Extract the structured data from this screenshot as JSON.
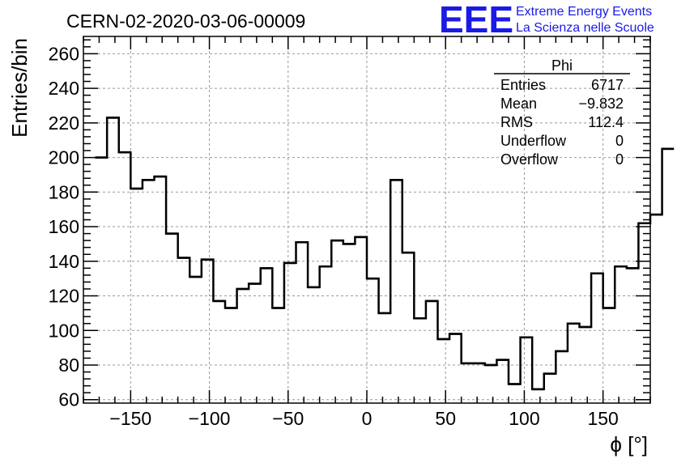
{
  "header": {
    "run_title": "CERN-02-2020-03-06-00009",
    "logo_text": "EEE",
    "logo_line1": "Extreme Energy Events",
    "logo_line2": "La Scienza nelle Scuole",
    "logo_color": "#1a1ae6"
  },
  "chart_data": {
    "type": "histogram",
    "xlabel": "ϕ [°]",
    "ylabel": "Entries/bin",
    "xlim": [
      -180,
      180
    ],
    "ylim": [
      58,
      270
    ],
    "xticks": [
      -150,
      -100,
      -50,
      0,
      50,
      100,
      150
    ],
    "yticks": [
      60,
      80,
      100,
      120,
      140,
      160,
      180,
      200,
      220,
      240,
      260
    ],
    "grid": true,
    "bin_width": 7.5,
    "x_first_edge": -172.5,
    "values": [
      200,
      223,
      203,
      182,
      187,
      189,
      156,
      142,
      131,
      141,
      117,
      113,
      124,
      127,
      136,
      113,
      139,
      151,
      125,
      137,
      152,
      150,
      154,
      130,
      110,
      187,
      145,
      107,
      117,
      95,
      98,
      81,
      81,
      80,
      83,
      69,
      96,
      66,
      75,
      88,
      104,
      102,
      133,
      113,
      137,
      136,
      162,
      167,
      205
    ],
    "stats_box": {
      "title": "Phi",
      "rows": [
        {
          "label": "Entries",
          "value": "6717"
        },
        {
          "label": "Mean",
          "value": "−9.832"
        },
        {
          "label": "RMS",
          "value": "112.4"
        },
        {
          "label": "Underflow",
          "value": "0"
        },
        {
          "label": "Overflow",
          "value": "0"
        }
      ]
    }
  }
}
